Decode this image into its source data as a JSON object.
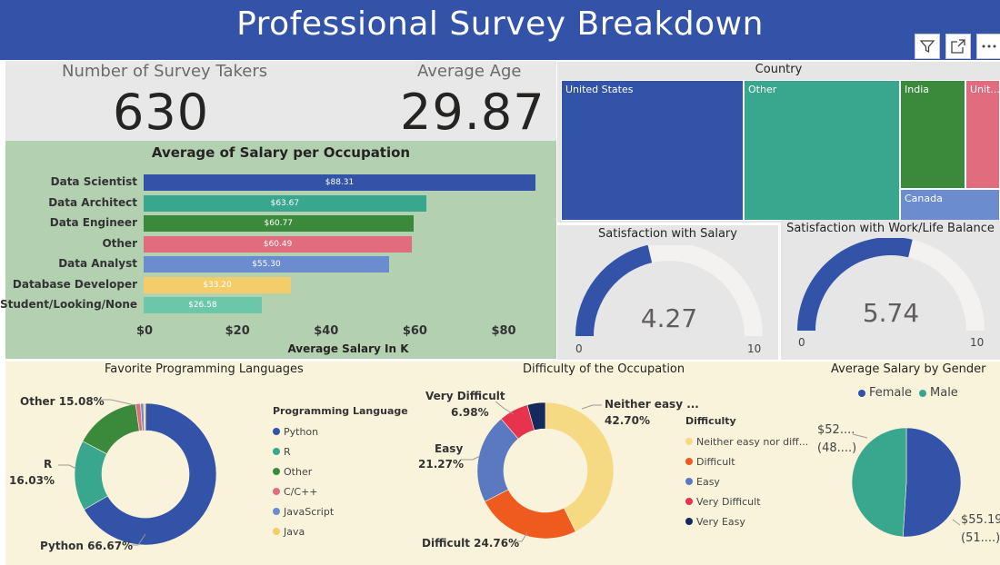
{
  "header": {
    "title": "Professional Survey Breakdown"
  },
  "toolbar": {
    "filter_icon": "filter-icon",
    "focus_icon": "focus-mode-icon",
    "more_icon": "more-options-icon"
  },
  "kpis": {
    "survey_takers": {
      "label": "Number of Survey Takers",
      "value": "630"
    },
    "average_age": {
      "label": "Average Age",
      "value": "29.87"
    }
  },
  "colors": {
    "header": "#3253a8",
    "python": "#3253a8",
    "r": "#39a68e",
    "other": "#3b8a3b",
    "c": "#e06c7e",
    "javascript": "#6b8ccf",
    "java": "#f5cc6a",
    "neither": "#f6d983",
    "difficult": "#ef5a1e",
    "easy": "#5b79c0",
    "very_difficult": "#e8334f",
    "very_easy": "#152a5c",
    "female": "#3253a8",
    "male": "#39a68e"
  },
  "chart_data": [
    {
      "type": "bar",
      "title": "Average of Salary per Occupation",
      "xlabel": "Average Salary In K",
      "ylabel": "",
      "categories": [
        "Data Scientist",
        "Data Architect",
        "Data Engineer",
        "Other",
        "Data Analyst",
        "Database Developer",
        "Student/Looking/None"
      ],
      "values": [
        88.31,
        63.67,
        60.77,
        60.49,
        55.3,
        33.2,
        26.58
      ],
      "value_labels": [
        "$88.31",
        "$63.67",
        "$60.77",
        "$60.49",
        "$55.30",
        "$33.20",
        "$26.58"
      ],
      "colors": [
        "#3253a8",
        "#39a68e",
        "#3b8a3b",
        "#e06c7e",
        "#6b8ccf",
        "#f5cc6a",
        "#6cc7aa"
      ],
      "xlim": [
        0,
        90
      ],
      "xticks": [
        0,
        20,
        40,
        60,
        80
      ],
      "xtick_labels": [
        "$0",
        "$20",
        "$40",
        "$60",
        "$80"
      ]
    },
    {
      "type": "treemap",
      "title": "Country",
      "items": [
        {
          "label": "United States",
          "color": "#3253a8"
        },
        {
          "label": "Other",
          "color": "#39a68e"
        },
        {
          "label": "India",
          "color": "#3b8a3b"
        },
        {
          "label": "Unit...",
          "color": "#e06c7e"
        },
        {
          "label": "Canada",
          "color": "#6b8ccf"
        }
      ]
    },
    {
      "type": "gauge",
      "title": "Satisfaction with Salary",
      "value": 4.27,
      "value_label": "4.27",
      "min": 0,
      "max": 10,
      "min_label": "0",
      "max_label": "10"
    },
    {
      "type": "gauge",
      "title": "Satisfaction with Work/Life Balance",
      "value": 5.74,
      "value_label": "5.74",
      "min": 0,
      "max": 10,
      "min_label": "0",
      "max_label": "10"
    },
    {
      "type": "pie",
      "subtype": "donut",
      "title": "Favorite Programming Languages",
      "legend_title": "Programming Language",
      "legend": [
        "Python",
        "R",
        "Other",
        "C/C++",
        "JavaScript",
        "Java"
      ],
      "slices": [
        {
          "name": "Python",
          "value": 66.67,
          "color": "#3253a8"
        },
        {
          "name": "R",
          "value": 16.03,
          "color": "#39a68e"
        },
        {
          "name": "Other",
          "value": 15.08,
          "color": "#3b8a3b"
        },
        {
          "name": "C/C++",
          "value": 1.1,
          "color": "#e06c7e"
        },
        {
          "name": "JavaScript",
          "value": 0.7,
          "color": "#6b8ccf"
        },
        {
          "name": "Java",
          "value": 0.42,
          "color": "#f5cc6a"
        }
      ],
      "labels": [
        "Python 66.67%",
        "R",
        "16.03%",
        "Other 15.08%"
      ]
    },
    {
      "type": "pie",
      "subtype": "donut",
      "title": "Difficulty of the Occupation",
      "legend_title": "Difficulty",
      "legend": [
        "Neither easy nor diff...",
        "Difficult",
        "Easy",
        "Very Difficult",
        "Very Easy"
      ],
      "slices": [
        {
          "name": "Neither easy nor difficult",
          "value": 42.7,
          "color": "#f6d983"
        },
        {
          "name": "Difficult",
          "value": 24.76,
          "color": "#ef5a1e"
        },
        {
          "name": "Easy",
          "value": 21.27,
          "color": "#5b79c0"
        },
        {
          "name": "Very Difficult",
          "value": 6.98,
          "color": "#e8334f"
        },
        {
          "name": "Very Easy",
          "value": 4.29,
          "color": "#152a5c"
        }
      ],
      "labels": [
        "Neither easy ...",
        "42.70%",
        "Difficult 24.76%",
        "Easy",
        "21.27%",
        "Very Difficult",
        "6.98%"
      ]
    },
    {
      "type": "pie",
      "title": "Average Salary by Gender",
      "legend": [
        "Female",
        "Male"
      ],
      "slices": [
        {
          "name": "Female",
          "value": 51,
          "color": "#3253a8"
        },
        {
          "name": "Male",
          "value": 49,
          "color": "#39a68e"
        }
      ],
      "labels": [
        "$52....",
        "(48....)",
        "$55.19",
        "(51....)"
      ]
    }
  ]
}
